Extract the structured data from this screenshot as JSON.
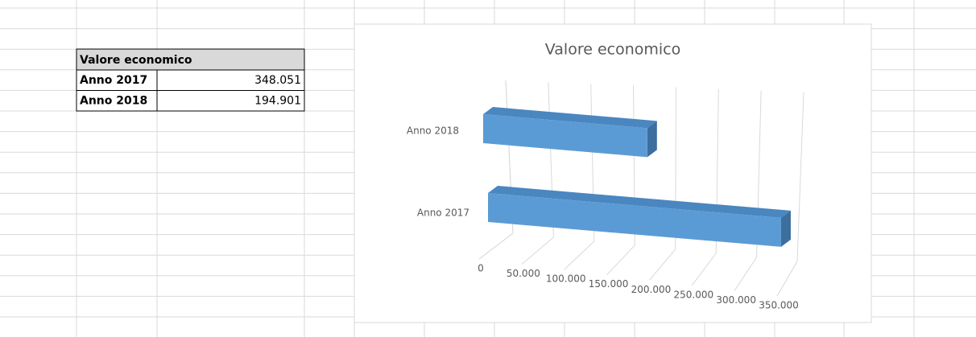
{
  "table": {
    "title": "Valore economico",
    "rows": [
      [
        "Anno 2017",
        "348.051"
      ],
      [
        "Anno 2018",
        "194.901"
      ]
    ]
  },
  "chart_data": {
    "type": "bar",
    "orientation": "horizontal",
    "title": "Valore economico",
    "categories": [
      "Anno 2017",
      "Anno 2018"
    ],
    "values": [
      348051,
      194901
    ],
    "color": "#5b9bd5",
    "xlim": [
      0,
      350000
    ],
    "xticks": [
      0,
      {
        "value": 50000,
        "label": "50.000"
      },
      {
        "value": 100000,
        "label": "100.000"
      },
      {
        "value": 150000,
        "label": "150.000"
      },
      {
        "value": 200000,
        "label": "200.000"
      },
      {
        "value": 250000,
        "label": "250.000"
      },
      {
        "value": 300000,
        "label": "300.000"
      },
      {
        "value": 350000,
        "label": "350.000"
      }
    ],
    "grid": true
  }
}
